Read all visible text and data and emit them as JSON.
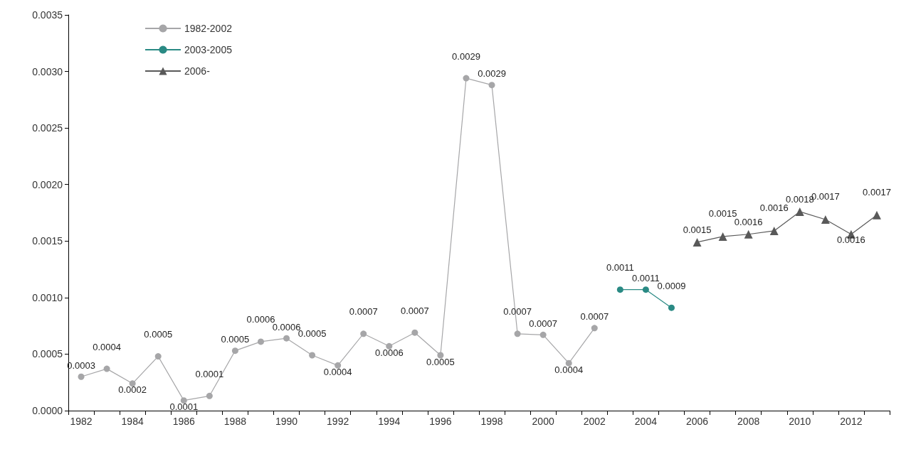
{
  "chart_data": {
    "type": "line",
    "categories": [
      "1982",
      null,
      "1984",
      null,
      "1986",
      null,
      "1988",
      null,
      "1990",
      null,
      "1992",
      null,
      "1994",
      null,
      "1996",
      null,
      "1998",
      null,
      "2000",
      null,
      "2002",
      null,
      "2004",
      null,
      "2006",
      null,
      "2008",
      null,
      "2010",
      null,
      "2012",
      null
    ],
    "series": [
      {
        "name": "1982-2002",
        "color": "#a6a6a8",
        "marker": "circle",
        "values": [
          0.0003,
          0.00037,
          0.00024,
          0.00048,
          9e-05,
          0.00013,
          0.00053,
          0.00061,
          0.00064,
          0.00049,
          0.0004,
          0.00068,
          0.00057,
          0.00069,
          0.00049,
          0.00294,
          0.00288,
          0.00068,
          0.00067,
          0.00042,
          0.00073,
          null,
          null,
          null,
          null,
          null,
          null,
          null,
          null,
          null,
          null,
          null
        ],
        "value_labels": [
          "0.0003",
          "0.0004",
          "0.0002",
          "0.0005",
          "0.0001",
          "0.0001",
          "0.0005",
          "0.0006",
          "0.0006",
          "0.0005",
          "0.0004",
          "0.0007",
          "0.0006",
          "0.0007",
          "0.0005",
          "0.0029",
          "0.0029",
          "0.0007",
          "0.0007",
          "0.0004",
          "0.0007",
          null,
          null,
          null,
          null,
          null,
          null,
          null,
          null,
          null,
          null,
          null
        ]
      },
      {
        "name": "2003-2005",
        "color": "#2a8a84",
        "marker": "circle",
        "values": [
          null,
          null,
          null,
          null,
          null,
          null,
          null,
          null,
          null,
          null,
          null,
          null,
          null,
          null,
          null,
          null,
          null,
          null,
          null,
          null,
          null,
          0.00107,
          0.00107,
          0.00091,
          null,
          null,
          null,
          null,
          null,
          null,
          null,
          null
        ],
        "value_labels": [
          null,
          null,
          null,
          null,
          null,
          null,
          null,
          null,
          null,
          null,
          null,
          null,
          null,
          null,
          null,
          null,
          null,
          null,
          null,
          null,
          null,
          "0.0011",
          "0.0011",
          "0.0009",
          null,
          null,
          null,
          null,
          null,
          null,
          null,
          null
        ]
      },
      {
        "name": "2006-",
        "color": "#595959",
        "marker": "triangle",
        "values": [
          null,
          null,
          null,
          null,
          null,
          null,
          null,
          null,
          null,
          null,
          null,
          null,
          null,
          null,
          null,
          null,
          null,
          null,
          null,
          null,
          null,
          null,
          null,
          null,
          0.00149,
          0.00154,
          0.00156,
          0.00159,
          0.00176,
          0.00169,
          0.00156,
          0.00173
        ],
        "value_labels": [
          null,
          null,
          null,
          null,
          null,
          null,
          null,
          null,
          null,
          null,
          null,
          null,
          null,
          null,
          null,
          null,
          null,
          null,
          null,
          null,
          null,
          null,
          null,
          null,
          "0.0015",
          "0.0015",
          "0.0016",
          "0.0016",
          "0.0018",
          "0.0017",
          "0.0016",
          "0.0017"
        ]
      }
    ],
    "ylim": [
      0,
      0.0035
    ],
    "yticks": [
      {
        "value": 0,
        "label": "0.0000"
      },
      {
        "value": 0.0005,
        "label": "0.0005"
      },
      {
        "value": 0.001,
        "label": "0.0010"
      },
      {
        "value": 0.0015,
        "label": "0.0015"
      },
      {
        "value": 0.002,
        "label": "0.0020"
      },
      {
        "value": 0.0025,
        "label": "0.0025"
      },
      {
        "value": 0.003,
        "label": "0.0030"
      },
      {
        "value": 0.0035,
        "label": "0.0035"
      }
    ],
    "grid": false,
    "legend": "top left"
  }
}
